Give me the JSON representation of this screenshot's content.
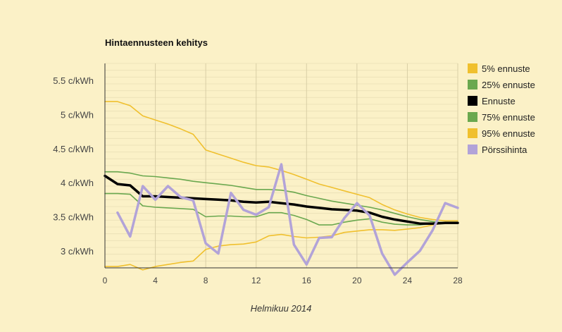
{
  "chart_data": {
    "type": "line",
    "title": "Hintaennusteen kehitys",
    "xlabel": "Helmikuu 2014",
    "ylabel": "",
    "xlim": [
      0,
      28
    ],
    "ylim": [
      2.75,
      5.75
    ],
    "xticks": [
      0,
      4,
      8,
      12,
      16,
      20,
      24,
      28
    ],
    "yticks": [
      {
        "value": 3.0,
        "label": "3 c/kWh"
      },
      {
        "value": 3.5,
        "label": "3.5 c/kWh"
      },
      {
        "value": 4.0,
        "label": "4 c/kWh"
      },
      {
        "value": 4.5,
        "label": "4.5 c/kWh"
      },
      {
        "value": 5.0,
        "label": "5 c/kWh"
      },
      {
        "value": 5.5,
        "label": "5.5 c/kWh"
      }
    ],
    "minor_grid_step": 0.1,
    "legend_position": "right",
    "series": [
      {
        "name": "5% ennuste",
        "color": "#f0c02e",
        "width": 1.6,
        "points": [
          [
            0,
            2.77
          ],
          [
            1,
            2.77
          ],
          [
            2,
            2.8
          ],
          [
            3,
            2.72
          ],
          [
            4,
            2.77
          ],
          [
            5,
            2.8
          ],
          [
            6,
            2.83
          ],
          [
            7,
            2.85
          ],
          [
            8,
            3.02
          ],
          [
            9,
            3.07
          ],
          [
            10,
            3.09
          ],
          [
            11,
            3.1
          ],
          [
            12,
            3.13
          ],
          [
            13,
            3.22
          ],
          [
            14,
            3.24
          ],
          [
            15,
            3.21
          ],
          [
            16,
            3.19
          ],
          [
            17,
            3.2
          ],
          [
            18,
            3.22
          ],
          [
            19,
            3.27
          ],
          [
            20,
            3.29
          ],
          [
            21,
            3.31
          ],
          [
            22,
            3.31
          ],
          [
            23,
            3.3
          ],
          [
            24,
            3.32
          ],
          [
            25,
            3.34
          ],
          [
            26,
            3.38
          ],
          [
            27,
            3.41
          ],
          [
            28,
            3.41
          ]
        ]
      },
      {
        "name": "25% ennuste",
        "color": "#6aa84f",
        "width": 1.6,
        "points": [
          [
            0,
            3.84
          ],
          [
            1,
            3.84
          ],
          [
            2,
            3.83
          ],
          [
            3,
            3.66
          ],
          [
            4,
            3.64
          ],
          [
            5,
            3.63
          ],
          [
            6,
            3.62
          ],
          [
            7,
            3.61
          ],
          [
            8,
            3.5
          ],
          [
            9,
            3.51
          ],
          [
            10,
            3.51
          ],
          [
            11,
            3.5
          ],
          [
            12,
            3.5
          ],
          [
            13,
            3.56
          ],
          [
            14,
            3.56
          ],
          [
            15,
            3.52
          ],
          [
            16,
            3.46
          ],
          [
            17,
            3.38
          ],
          [
            18,
            3.38
          ],
          [
            19,
            3.42
          ],
          [
            20,
            3.45
          ],
          [
            21,
            3.47
          ],
          [
            22,
            3.42
          ],
          [
            23,
            3.39
          ],
          [
            24,
            3.38
          ],
          [
            25,
            3.38
          ],
          [
            26,
            3.4
          ],
          [
            27,
            3.42
          ],
          [
            28,
            3.42
          ]
        ]
      },
      {
        "name": "Ennuste",
        "color": "#000000",
        "width": 3.5,
        "points": [
          [
            0,
            4.1
          ],
          [
            1,
            3.98
          ],
          [
            2,
            3.96
          ],
          [
            3,
            3.8
          ],
          [
            4,
            3.8
          ],
          [
            5,
            3.79
          ],
          [
            6,
            3.78
          ],
          [
            7,
            3.77
          ],
          [
            8,
            3.76
          ],
          [
            9,
            3.75
          ],
          [
            10,
            3.74
          ],
          [
            11,
            3.72
          ],
          [
            12,
            3.71
          ],
          [
            13,
            3.72
          ],
          [
            14,
            3.7
          ],
          [
            15,
            3.68
          ],
          [
            16,
            3.65
          ],
          [
            17,
            3.63
          ],
          [
            18,
            3.61
          ],
          [
            19,
            3.6
          ],
          [
            20,
            3.59
          ],
          [
            21,
            3.56
          ],
          [
            22,
            3.5
          ],
          [
            23,
            3.46
          ],
          [
            24,
            3.43
          ],
          [
            25,
            3.4
          ],
          [
            26,
            3.4
          ],
          [
            27,
            3.41
          ],
          [
            28,
            3.41
          ]
        ]
      },
      {
        "name": "75% ennuste",
        "color": "#6aa84f",
        "width": 1.6,
        "points": [
          [
            0,
            4.16
          ],
          [
            1,
            4.16
          ],
          [
            2,
            4.14
          ],
          [
            3,
            4.1
          ],
          [
            4,
            4.09
          ],
          [
            5,
            4.07
          ],
          [
            6,
            4.05
          ],
          [
            7,
            4.02
          ],
          [
            8,
            4.0
          ],
          [
            9,
            3.98
          ],
          [
            10,
            3.96
          ],
          [
            11,
            3.93
          ],
          [
            12,
            3.9
          ],
          [
            13,
            3.9
          ],
          [
            14,
            3.89
          ],
          [
            15,
            3.86
          ],
          [
            16,
            3.81
          ],
          [
            17,
            3.77
          ],
          [
            18,
            3.73
          ],
          [
            19,
            3.7
          ],
          [
            20,
            3.67
          ],
          [
            21,
            3.64
          ],
          [
            22,
            3.6
          ],
          [
            23,
            3.55
          ],
          [
            24,
            3.5
          ],
          [
            25,
            3.46
          ],
          [
            26,
            3.43
          ],
          [
            27,
            3.41
          ],
          [
            28,
            3.41
          ]
        ]
      },
      {
        "name": "95% ennuste",
        "color": "#f0c02e",
        "width": 1.6,
        "points": [
          [
            0,
            5.19
          ],
          [
            1,
            5.19
          ],
          [
            2,
            5.13
          ],
          [
            3,
            4.98
          ],
          [
            4,
            4.92
          ],
          [
            5,
            4.86
          ],
          [
            6,
            4.79
          ],
          [
            7,
            4.71
          ],
          [
            8,
            4.48
          ],
          [
            9,
            4.42
          ],
          [
            10,
            4.36
          ],
          [
            11,
            4.3
          ],
          [
            12,
            4.25
          ],
          [
            13,
            4.23
          ],
          [
            14,
            4.18
          ],
          [
            15,
            4.12
          ],
          [
            16,
            4.05
          ],
          [
            17,
            3.98
          ],
          [
            18,
            3.93
          ],
          [
            19,
            3.88
          ],
          [
            20,
            3.83
          ],
          [
            21,
            3.78
          ],
          [
            22,
            3.68
          ],
          [
            23,
            3.6
          ],
          [
            24,
            3.54
          ],
          [
            25,
            3.49
          ],
          [
            26,
            3.46
          ],
          [
            27,
            3.44
          ],
          [
            28,
            3.44
          ]
        ]
      },
      {
        "name": "Pörssihinta",
        "color": "#b2a3d8",
        "width": 3.5,
        "points": [
          [
            1,
            3.56
          ],
          [
            2,
            3.21
          ],
          [
            3,
            3.95
          ],
          [
            4,
            3.75
          ],
          [
            5,
            3.95
          ],
          [
            6,
            3.79
          ],
          [
            7,
            3.74
          ],
          [
            8,
            3.11
          ],
          [
            9,
            2.96
          ],
          [
            10,
            3.85
          ],
          [
            11,
            3.6
          ],
          [
            12,
            3.53
          ],
          [
            13,
            3.64
          ],
          [
            14,
            4.27
          ],
          [
            15,
            3.09
          ],
          [
            16,
            2.8
          ],
          [
            17,
            3.19
          ],
          [
            18,
            3.2
          ],
          [
            19,
            3.48
          ],
          [
            20,
            3.7
          ],
          [
            21,
            3.52
          ],
          [
            22,
            2.96
          ],
          [
            23,
            2.65
          ],
          [
            24,
            2.83
          ],
          [
            25,
            3.0
          ],
          [
            26,
            3.3
          ],
          [
            27,
            3.7
          ],
          [
            28,
            3.63
          ]
        ]
      }
    ]
  }
}
